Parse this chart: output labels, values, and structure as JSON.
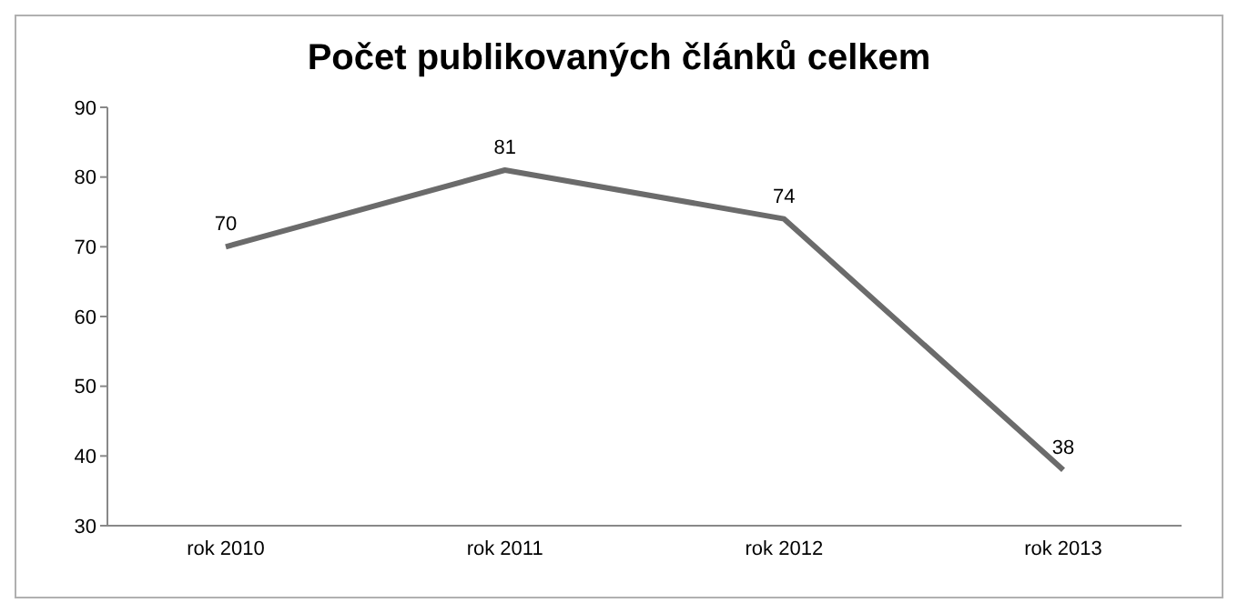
{
  "chart_data": {
    "type": "line",
    "title": "Počet publikovaných článků celkem",
    "categories": [
      "rok 2010",
      "rok 2011",
      "rok 2012",
      "rok 2013"
    ],
    "series": [
      {
        "color": "#6b6b6b",
        "values": [
          70,
          81,
          74,
          38
        ]
      }
    ],
    "ylim": [
      30,
      90
    ],
    "yticks": [
      30,
      40,
      50,
      60,
      70,
      80,
      90
    ],
    "grid": false,
    "legend": false,
    "data_labels": true,
    "marker": "none",
    "line_style": "solid"
  }
}
